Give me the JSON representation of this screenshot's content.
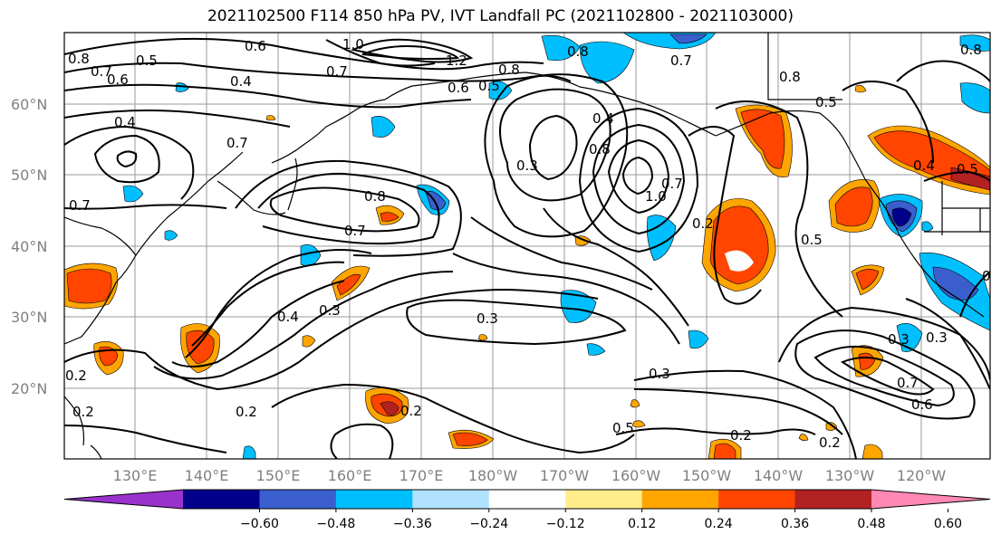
{
  "title": "2021102500 F114 850 hPa PV, IVT Landfall PC (2021102800 - 2021103000)",
  "lat_labels": [
    "60°N",
    "50°N",
    "40°N",
    "30°N",
    "20°N"
  ],
  "lon_labels": [
    "130°E",
    "140°E",
    "150°E",
    "160°E",
    "170°E",
    "180°W",
    "170°W",
    "160°W",
    "150°W",
    "140°W",
    "130°W",
    "120°W"
  ],
  "colorbar": {
    "ticks": [
      "−0.60",
      "−0.48",
      "−0.36",
      "−0.24",
      "−0.12",
      "0.12",
      "0.24",
      "0.36",
      "0.48",
      "0.60"
    ],
    "colors": [
      "#9932cc",
      "#00008b",
      "#3a5fcd",
      "#00bfff",
      "#b0e2ff",
      "#ffffff",
      "#ffec8b",
      "#ffa500",
      "#ff4500",
      "#b22222",
      "#ff88b4"
    ]
  },
  "contour_labels": [
    "0.8",
    "0.7",
    "0.6",
    "0.5",
    "0.4",
    "1.0",
    "0.6",
    "1.2",
    "0.8",
    "0.6",
    "0.5",
    "0.8",
    "0.7",
    "0.8",
    "0.5",
    "0.8",
    "0.4",
    "0.7",
    "0.7",
    "0.3",
    "0.4",
    "0.8",
    "0.7",
    "1.0",
    "0.7",
    "0.2",
    "0.4",
    "0.5",
    "0.5",
    "0.8",
    "0.7",
    "0.4",
    "0.3",
    "0.3",
    "0.3",
    "0.2",
    "0.2",
    "0.3",
    "0.2",
    "0.5",
    "0.2",
    "0.2",
    "0.7",
    "0.6",
    "0.3",
    "0.5",
    "0.2"
  ]
}
